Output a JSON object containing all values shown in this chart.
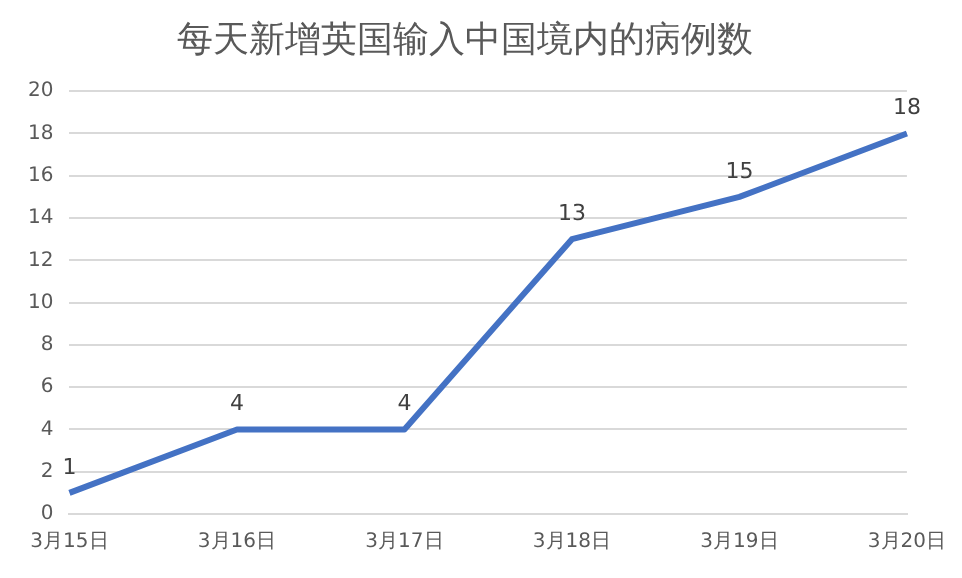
{
  "chart_data": {
    "type": "line",
    "title": "每天新增英国输入中国境内的病例数",
    "categories": [
      "3月15日",
      "3月16日",
      "3月17日",
      "3月18日",
      "3月19日",
      "3月20日"
    ],
    "series": [
      {
        "color": "#4472c4",
        "values": [
          1,
          4,
          4,
          13,
          15,
          18
        ]
      }
    ],
    "ylim": [
      0,
      20
    ],
    "yticks": [
      0,
      2,
      4,
      6,
      8,
      10,
      12,
      14,
      16,
      18,
      20
    ],
    "grid": "y",
    "legend": false,
    "marker": "none",
    "line_style": "solid",
    "data_labels": true
  }
}
